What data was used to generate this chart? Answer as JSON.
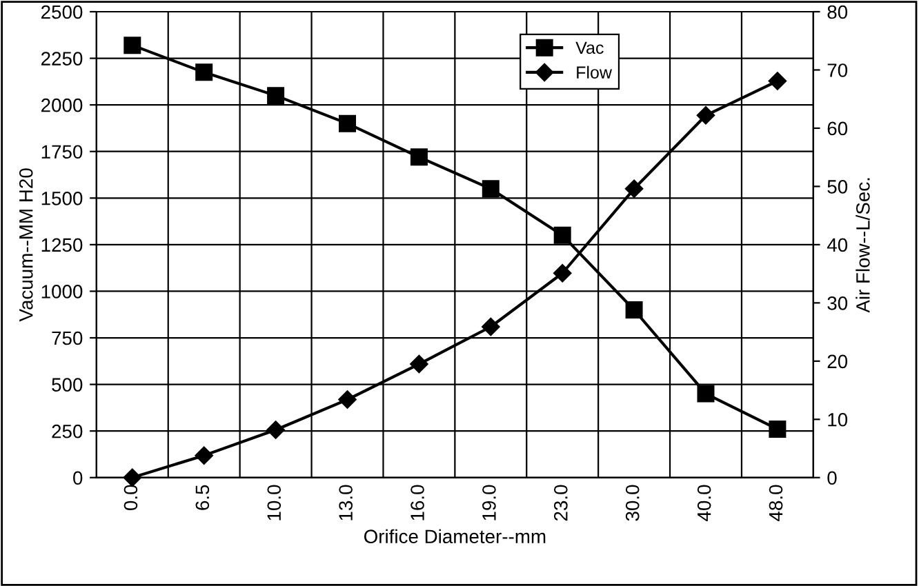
{
  "chart_data": {
    "type": "line",
    "xlabel": "Orifice Diameter--mm",
    "ylabel": "Vacuum--MM H20",
    "y2label": "Air Flow--L/Sec.",
    "categories": [
      "0.0",
      "6.5",
      "10.0",
      "13.0",
      "16.0",
      "19.0",
      "23.0",
      "30.0",
      "40.0",
      "48.0"
    ],
    "series": [
      {
        "name": "Vac",
        "color": "#000000",
        "marker": "square",
        "values": [
          2320,
          2175,
          2050,
          1900,
          1720,
          1550,
          1300,
          900,
          450,
          260
        ]
      },
      {
        "name": "Flow",
        "color": "#000000",
        "marker": "diamond",
        "axis": "y2",
        "values": [
          0,
          3.8,
          8.2,
          13.4,
          19.5,
          25.9,
          35.1,
          49.6,
          62.2,
          68.1
        ]
      }
    ],
    "ylim": [
      0,
      2500
    ],
    "yticks": [
      0,
      250,
      500,
      750,
      1000,
      1250,
      1500,
      1750,
      2000,
      2250,
      2500
    ],
    "y2lim": [
      0,
      80
    ],
    "y2ticks": [
      0,
      10,
      20,
      30,
      40,
      50,
      60,
      70,
      80
    ],
    "grid": true,
    "legend": "top",
    "line_style": "solid"
  }
}
